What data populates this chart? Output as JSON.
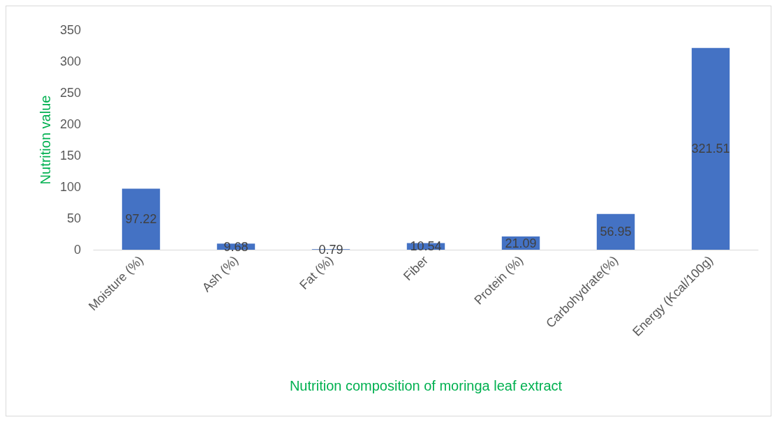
{
  "chart_data": {
    "type": "bar",
    "xlabel": "Nutrition composition of moringa leaf extract",
    "ylabel": "Nutrition value",
    "categories": [
      "Moisture (%)",
      "Ash (%)",
      "Fat (%)",
      "Fiber",
      "Protein (%)",
      "Carbohydrate(%)",
      "Energy (Kcal/100g)"
    ],
    "values": [
      97.22,
      9.68,
      0.79,
      10.54,
      21.09,
      56.95,
      321.51
    ],
    "color": "#4472c4",
    "ylim": [
      0,
      350
    ],
    "yticks": [
      0,
      50,
      100,
      150,
      200,
      250,
      300,
      350
    ],
    "data_labels": true,
    "grid": false
  }
}
